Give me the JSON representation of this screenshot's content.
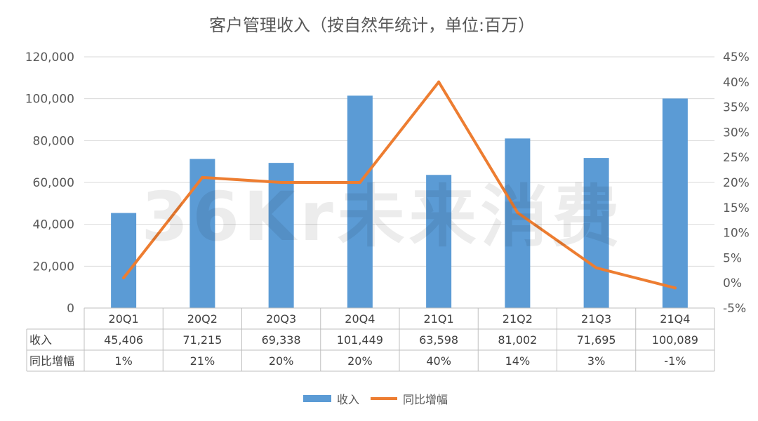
{
  "chart_data": {
    "type": "bar",
    "title": "客户管理收入（按自然年统计，单位:百万）",
    "categories": [
      "20Q1",
      "20Q2",
      "20Q3",
      "20Q4",
      "21Q1",
      "21Q2",
      "21Q3",
      "21Q4"
    ],
    "series": [
      {
        "name": "收入",
        "type": "bar",
        "axis": "left",
        "color": "#5B9BD5",
        "values": [
          45406,
          71215,
          69338,
          101449,
          63598,
          81002,
          71695,
          100089
        ],
        "labels": [
          "45,406",
          "71,215",
          "69,338",
          "101,449",
          "63,598",
          "81,002",
          "71,695",
          "100,089"
        ]
      },
      {
        "name": "同比增幅",
        "type": "line",
        "axis": "right",
        "color": "#ED7D31",
        "values": [
          1,
          21,
          20,
          20,
          40,
          14,
          3,
          -1
        ],
        "labels": [
          "1%",
          "21%",
          "20%",
          "20%",
          "40%",
          "14%",
          "3%",
          "-1%"
        ]
      }
    ],
    "y_left": {
      "lim": [
        0,
        120000
      ],
      "ticks": [
        0,
        20000,
        40000,
        60000,
        80000,
        100000,
        120000
      ],
      "tick_labels": [
        "0",
        "20,000",
        "40,000",
        "60,000",
        "80,000",
        "100,000",
        "120,000"
      ]
    },
    "y_right": {
      "lim": [
        -5,
        45
      ],
      "ticks": [
        -5,
        0,
        5,
        10,
        15,
        20,
        25,
        30,
        35,
        40,
        45
      ],
      "tick_labels": [
        "-5%",
        "0%",
        "5%",
        "10%",
        "15%",
        "20%",
        "25%",
        "30%",
        "35%",
        "40%",
        "45%"
      ]
    },
    "grid": true,
    "legend_position": "bottom",
    "data_table": true
  },
  "watermark": "36Kr未来消费"
}
